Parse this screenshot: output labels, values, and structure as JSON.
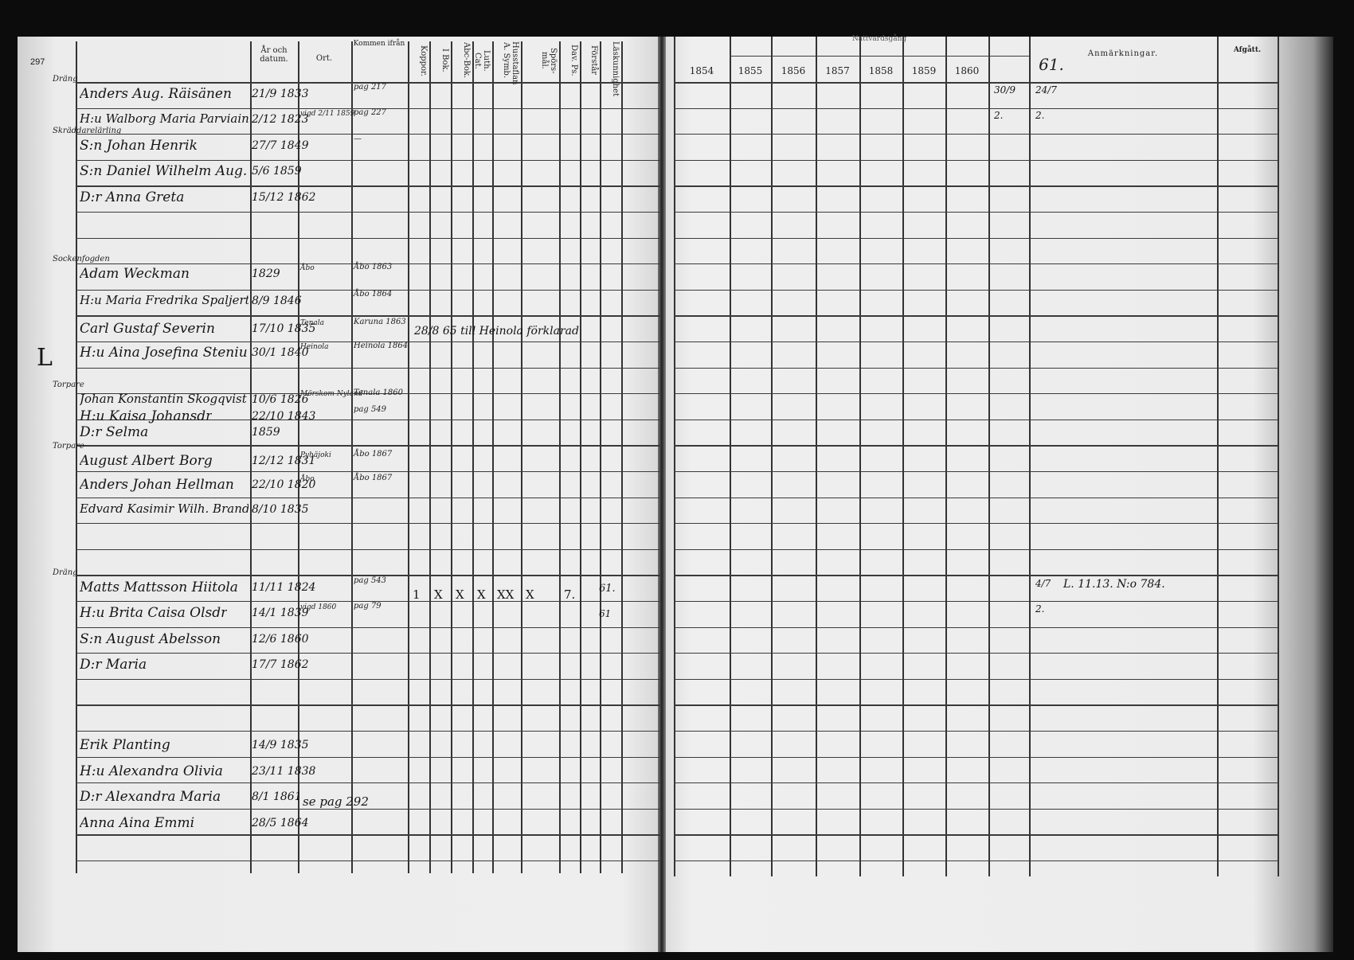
{
  "page_number": "297",
  "left_header": {
    "year_date": "År och datum.",
    "place": "Ort.",
    "came_from": "Kommen ifrån",
    "vertical": [
      "Koppor.",
      "I Bok.",
      "Abc-Bok.",
      "Luth. Cat.",
      "Husstaflan A. Symb.",
      "Spörs-mål.",
      "Dav. Ps.",
      "Förstår",
      "Läskunnighet"
    ]
  },
  "right_header": {
    "communion": "Nattvardsgång",
    "years": [
      "1854",
      "1855",
      "1856",
      "1857",
      "1858",
      "1859",
      "1860",
      "61."
    ],
    "remarks": "Anmärkningar.",
    "departed": "Afgått."
  },
  "entries": [
    {
      "note": "Dräng",
      "name": "Anders Aug. Räisänen",
      "date": "21/9 1833",
      "place": "",
      "from": "pag 217"
    },
    {
      "note": "",
      "name": "H:u Walborg Maria Parviainen",
      "date": "2/12 1823",
      "place": "vigd 2/11 1859",
      "from": "pag 227"
    },
    {
      "note": "Skräddarelärling",
      "name": "S:n Johan Henrik",
      "date": "27/7 1849",
      "place": "",
      "from": "—"
    },
    {
      "note": "",
      "name": "S:n Daniel Wilhelm Aug.",
      "date": "5/6 1859",
      "place": "",
      "from": ""
    },
    {
      "note": "",
      "name": "D:r Anna Greta",
      "date": "15/12 1862",
      "place": "",
      "from": ""
    },
    {
      "note": "Sockenfogden",
      "name": "Adam Weckman",
      "date": "1829",
      "place": "Åbo",
      "from": "Åbo 1863"
    },
    {
      "note": "",
      "name": "H:u Maria Fredrika Spaljert",
      "date": "8/9 1846",
      "place": "",
      "from": "Åbo 1864"
    },
    {
      "note": "",
      "name": "Carl Gustaf Severin",
      "date": "17/10 1835",
      "place": "Tenala",
      "from": "Karuna 1863"
    },
    {
      "note": "",
      "name": "H:u Aina Josefina Steniu",
      "date": "30/1 1840",
      "place": "Heinola",
      "from": "Heinola 1864"
    },
    {
      "note": "Torpare",
      "name": "Johan Konstantin Skogqvist",
      "date": "10/6 1826",
      "place": "Mörskom Nyland",
      "from": "Tenala 1860"
    },
    {
      "note": "",
      "name": "H:u Kaisa Johansdr",
      "date": "22/10 1843",
      "place": "",
      "from": "pag 549"
    },
    {
      "note": "",
      "name": "D:r Selma",
      "date": "1859",
      "place": "",
      "from": ""
    },
    {
      "note": "Torpare",
      "name": "August Albert Borg",
      "date": "12/12 1831",
      "place": "Pyhäjoki",
      "from": "Åbo 1867"
    },
    {
      "note": "",
      "name": "Anders Johan Hellman",
      "date": "22/10 1820",
      "place": "Åbo",
      "from": "Åbo 1867"
    },
    {
      "note": "",
      "name": "Edvard Kasimir Wilh. Brander",
      "date": "8/10 1835",
      "place": "",
      "from": ""
    },
    {
      "note": "Dräng",
      "name": "Matts Mattsson Hiitola",
      "date": "11/11 1824",
      "place": "",
      "from": "pag 543"
    },
    {
      "note": "",
      "name": "H:u Brita Caisa Olsdr",
      "date": "14/1 1839",
      "place": "vigd 1860",
      "from": "pag 79"
    },
    {
      "note": "",
      "name": "S:n August Abelsson",
      "date": "12/6 1860",
      "place": "",
      "from": ""
    },
    {
      "note": "",
      "name": "D:r Maria",
      "date": "17/7 1862",
      "place": "",
      "from": ""
    },
    {
      "note": "",
      "name": "Erik Planting",
      "date": "14/9 1835",
      "place": "",
      "from": ""
    },
    {
      "note": "",
      "name": "H:u Alexandra Olivia",
      "date": "23/11 1838",
      "place": "",
      "from": ""
    },
    {
      "note": "",
      "name": "D:r Alexandra Maria",
      "date": "8/1 1861",
      "place": "",
      "from": ""
    },
    {
      "note": "",
      "name": "Anna Aina Emmi",
      "date": "28/5 1864",
      "place": "",
      "from": ""
    }
  ],
  "annotations": {
    "severin_moved": "28/8 65 till Heinola förklarad",
    "planting_ref": "se pag 292",
    "hiitola_marks": [
      "1",
      "X",
      "X",
      "X",
      "XX",
      "X",
      "7."
    ],
    "hiitola_forstar": "61.",
    "brita_forstar": "61",
    "margin_L": "L"
  },
  "right_entries": [
    {
      "c1860": "30/9",
      "c61": "24/7",
      "remark": ""
    },
    {
      "c1860": "2.",
      "c61": "2.",
      "remark": ""
    },
    {
      "c1860": "",
      "c61": "4/7",
      "remark": "L. 11.13. N:o 784."
    },
    {
      "c1860": "",
      "c61": "2.",
      "remark": ""
    }
  ]
}
